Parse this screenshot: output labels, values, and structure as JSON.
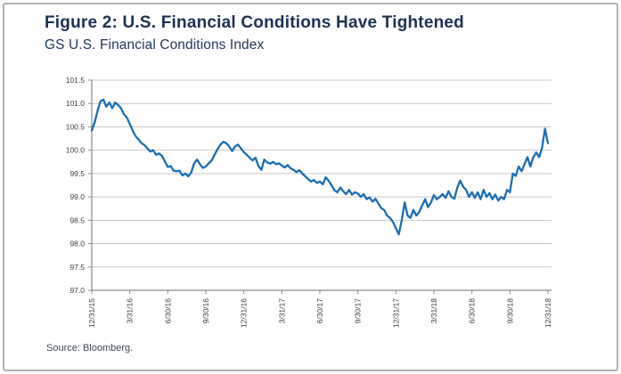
{
  "figure": {
    "title": "Figure 2: U.S. Financial Conditions Have Tightened",
    "subtitle": "GS U.S. Financial Conditions Index",
    "source": "Source: Bloomberg."
  },
  "colors": {
    "title_navy": "#1d3153",
    "line_blue": "#1b6db3",
    "grid_gray": "#c9c9c9",
    "axis_gray": "#8a8a8a",
    "tick_label_gray": "#404040",
    "frame_gray": "#b5b1ab"
  },
  "chart_data": {
    "type": "line",
    "title": "GS U.S. Financial Conditions Index",
    "xlabel": "",
    "ylabel": "",
    "ylim": [
      97.0,
      101.5
    ],
    "y_tick_step": 0.5,
    "y_tick_labels": [
      "101.5",
      "101.0",
      "100.5",
      "100.0",
      "99.5",
      "99.0",
      "98.5",
      "98.0",
      "97.5",
      "97.0"
    ],
    "x_tick_labels": [
      "12/31/15",
      "3/31/16",
      "6/30/16",
      "9/30/16",
      "12/31/16",
      "3/31/17",
      "6/30/17",
      "9/30/17",
      "12/31/17",
      "3/31/18",
      "6/30/18",
      "9/30/18",
      "12/31/18"
    ],
    "x_tick_every": 13,
    "grid": true,
    "legend": "none",
    "series": [
      {
        "name": "GS U.S. Financial Conditions Index",
        "values": [
          100.42,
          100.6,
          100.85,
          101.05,
          101.08,
          100.93,
          101.02,
          100.9,
          101.02,
          100.97,
          100.9,
          100.77,
          100.7,
          100.56,
          100.42,
          100.3,
          100.23,
          100.15,
          100.11,
          100.04,
          99.97,
          100.0,
          99.9,
          99.93,
          99.88,
          99.76,
          99.64,
          99.66,
          99.56,
          99.55,
          99.56,
          99.46,
          99.5,
          99.44,
          99.52,
          99.72,
          99.8,
          99.7,
          99.62,
          99.65,
          99.72,
          99.78,
          99.9,
          100.02,
          100.12,
          100.18,
          100.15,
          100.08,
          99.98,
          100.08,
          100.12,
          100.04,
          99.96,
          99.9,
          99.84,
          99.78,
          99.84,
          99.66,
          99.58,
          99.8,
          99.74,
          99.71,
          99.75,
          99.7,
          99.72,
          99.67,
          99.63,
          99.68,
          99.61,
          99.58,
          99.53,
          99.57,
          99.5,
          99.44,
          99.38,
          99.33,
          99.36,
          99.3,
          99.33,
          99.27,
          99.42,
          99.35,
          99.25,
          99.14,
          99.1,
          99.2,
          99.12,
          99.06,
          99.15,
          99.05,
          99.1,
          99.07,
          99.0,
          99.06,
          98.95,
          98.99,
          98.9,
          98.96,
          98.86,
          98.76,
          98.72,
          98.6,
          98.55,
          98.46,
          98.33,
          98.2,
          98.5,
          98.88,
          98.6,
          98.55,
          98.72,
          98.6,
          98.68,
          98.82,
          98.95,
          98.78,
          98.88,
          99.04,
          98.95,
          99.0,
          99.06,
          98.98,
          99.12,
          99.0,
          98.96,
          99.2,
          99.35,
          99.22,
          99.15,
          99.0,
          99.1,
          98.98,
          99.1,
          98.95,
          99.15,
          99.0,
          99.08,
          98.95,
          99.05,
          98.92,
          99.0,
          98.95,
          99.15,
          99.1,
          99.5,
          99.45,
          99.65,
          99.55,
          99.7,
          99.85,
          99.65,
          99.85,
          99.95,
          99.85,
          100.05,
          100.46,
          100.15
        ]
      }
    ]
  }
}
